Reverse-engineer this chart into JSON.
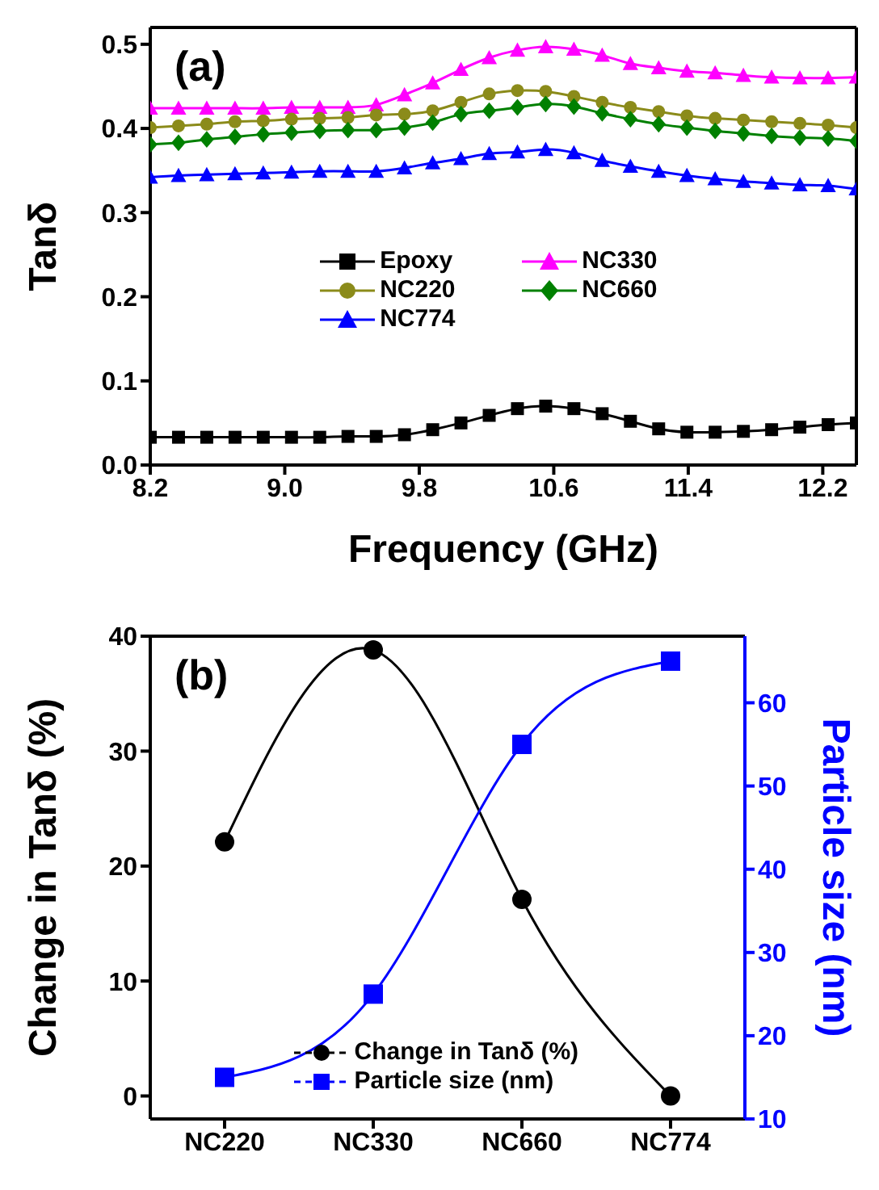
{
  "chart_data": [
    {
      "type": "line",
      "xlabel": "Frequency (GHz)",
      "ylabel": "Tanδ",
      "annotations": [
        "(a)"
      ],
      "x": [
        8.2,
        8.368,
        8.536,
        8.704,
        8.872,
        9.04,
        9.208,
        9.376,
        9.544,
        9.712,
        9.88,
        10.048,
        10.216,
        10.384,
        10.552,
        10.72,
        10.888,
        11.056,
        11.224,
        11.392,
        11.56,
        11.728,
        11.896,
        12.064,
        12.232,
        12.4
      ],
      "series": [
        {
          "name": "Epoxy",
          "color": "#000000",
          "marker": "square",
          "values": [
            0.033,
            0.033,
            0.033,
            0.033,
            0.033,
            0.033,
            0.033,
            0.034,
            0.034,
            0.036,
            0.042,
            0.05,
            0.059,
            0.067,
            0.07,
            0.067,
            0.061,
            0.052,
            0.043,
            0.039,
            0.039,
            0.04,
            0.042,
            0.045,
            0.048,
            0.05
          ]
        },
        {
          "name": "NC330",
          "color": "#ff00ff",
          "marker": "triangle",
          "values": [
            0.424,
            0.424,
            0.424,
            0.424,
            0.424,
            0.425,
            0.425,
            0.425,
            0.428,
            0.44,
            0.454,
            0.47,
            0.484,
            0.493,
            0.497,
            0.494,
            0.487,
            0.477,
            0.472,
            0.468,
            0.466,
            0.463,
            0.461,
            0.46,
            0.46,
            0.461
          ]
        },
        {
          "name": "NC220",
          "color": "#8b8b1a",
          "marker": "circle",
          "values": [
            0.401,
            0.403,
            0.405,
            0.408,
            0.409,
            0.411,
            0.412,
            0.413,
            0.416,
            0.417,
            0.421,
            0.431,
            0.441,
            0.445,
            0.444,
            0.438,
            0.431,
            0.425,
            0.42,
            0.415,
            0.412,
            0.41,
            0.408,
            0.406,
            0.404,
            0.401
          ]
        },
        {
          "name": "NC660",
          "color": "#008000",
          "marker": "diamond",
          "values": [
            0.381,
            0.383,
            0.387,
            0.39,
            0.393,
            0.395,
            0.397,
            0.398,
            0.398,
            0.401,
            0.407,
            0.417,
            0.421,
            0.425,
            0.429,
            0.426,
            0.418,
            0.411,
            0.405,
            0.401,
            0.397,
            0.394,
            0.391,
            0.389,
            0.388,
            0.385
          ]
        },
        {
          "name": "NC774",
          "color": "#0000ff",
          "marker": "triangle",
          "values": [
            0.342,
            0.344,
            0.345,
            0.346,
            0.347,
            0.348,
            0.349,
            0.349,
            0.349,
            0.353,
            0.359,
            0.364,
            0.37,
            0.372,
            0.375,
            0.371,
            0.362,
            0.355,
            0.349,
            0.344,
            0.34,
            0.337,
            0.335,
            0.333,
            0.332,
            0.328
          ]
        }
      ],
      "xlim": [
        8.2,
        12.4
      ],
      "xticks": [
        8.2,
        {
          "value": 9,
          "label": "9.0"
        },
        9.8,
        10.6,
        11.4,
        12.2
      ],
      "ylim": [
        0,
        0.52
      ],
      "yticks": [
        {
          "value": 0,
          "label": "0.0"
        },
        0.1,
        0.2,
        0.3,
        0.4,
        0.5
      ],
      "legend": "center",
      "grid": false
    },
    {
      "type": "line",
      "ylabel": "Change in Tanδ (%)",
      "y2label": "Particle size (nm)",
      "annotations": [
        "(b)"
      ],
      "categories": [
        "NC220",
        "NC330",
        "NC660",
        "NC774"
      ],
      "series": [
        {
          "name": "Change in Tanδ (%)",
          "color": "#000000",
          "marker": "circle",
          "values": [
            22.1,
            38.8,
            17.1,
            0
          ]
        },
        {
          "name": "Particle size (nm)",
          "color": "#0000ff",
          "marker": "square",
          "axis": "y2",
          "values": [
            15,
            25,
            55,
            65
          ]
        }
      ],
      "ylim": [
        -2,
        40
      ],
      "yticks": [
        0,
        10,
        20,
        30,
        40
      ],
      "y2lim": [
        10,
        68
      ],
      "y2ticks": [
        10,
        20,
        30,
        40,
        50,
        60
      ],
      "legend": "bottom",
      "grid": false
    }
  ]
}
